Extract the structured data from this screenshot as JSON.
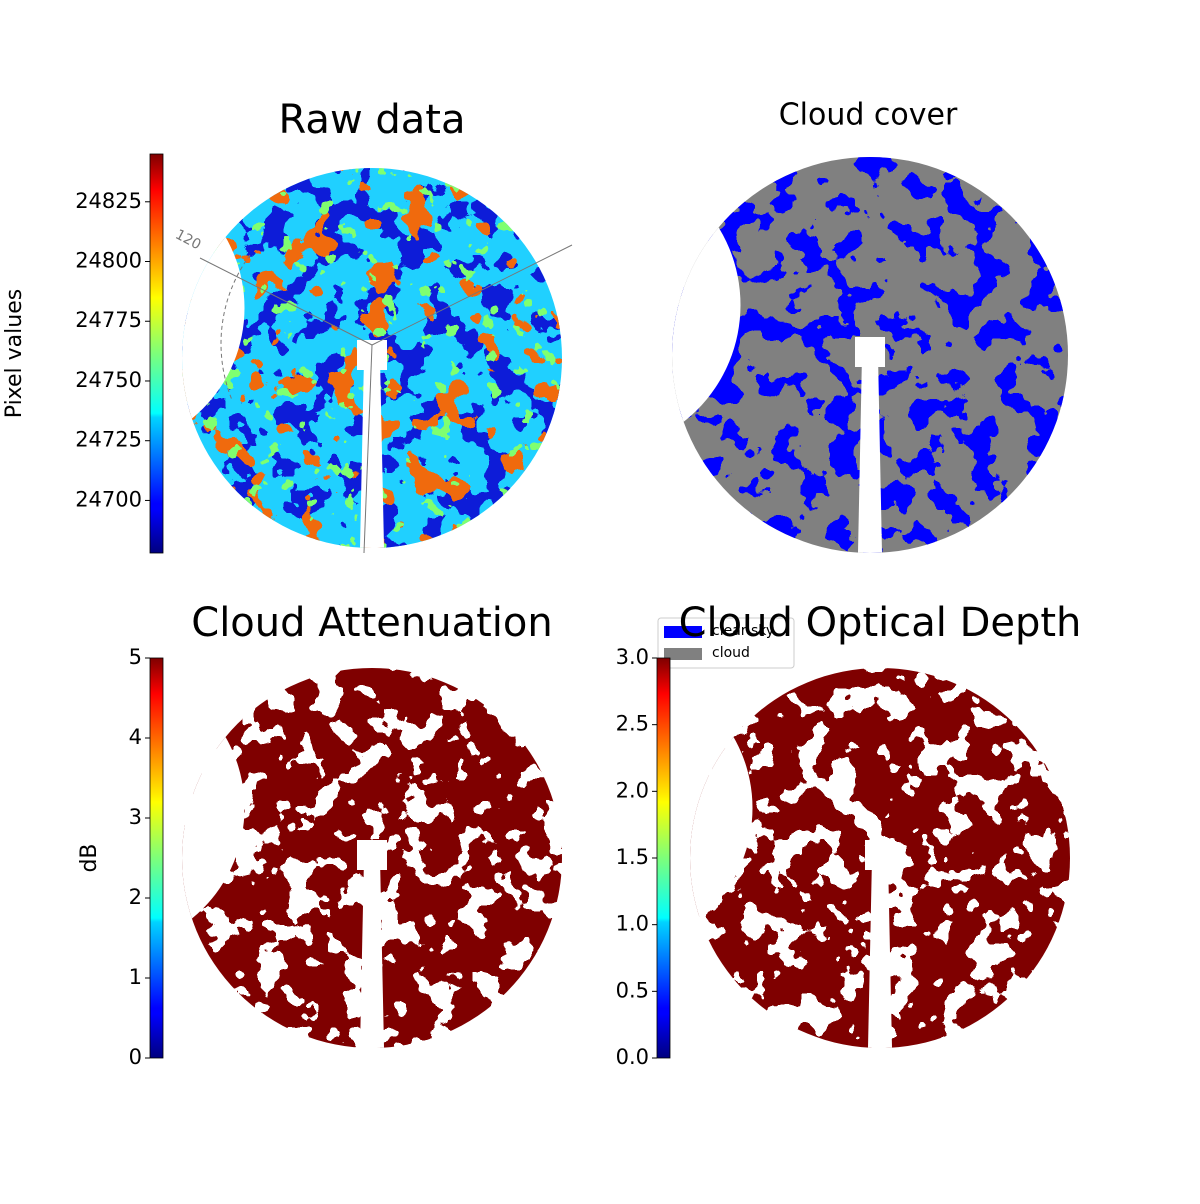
{
  "chart_data": [
    {
      "type": "image",
      "title": "Raw data",
      "cmap": "jet",
      "clim": [
        24678,
        24845
      ],
      "colorbar_label": "Pixel values",
      "colorbar_ticks": [
        24700,
        24725,
        24750,
        24775,
        24800,
        24825
      ],
      "annotations": [
        "120"
      ]
    },
    {
      "type": "image",
      "title": "Cloud cover",
      "series": [
        {
          "name": "clear sky",
          "color": "#0000ff"
        },
        {
          "name": "cloud",
          "color": "#808080"
        }
      ]
    },
    {
      "type": "image",
      "title": "Cloud Attenuation",
      "cmap": "jet",
      "clim": [
        0,
        5
      ],
      "colorbar_label": "dB",
      "colorbar_ticks": [
        0,
        1,
        2,
        3,
        4,
        5
      ]
    },
    {
      "type": "image",
      "title": "Cloud Optical Depth",
      "cmap": "jet",
      "clim": [
        0,
        3
      ],
      "colorbar_ticks": [
        {
          "value": 0,
          "label": "0.0"
        },
        0.5,
        {
          "value": 1,
          "label": "1.0"
        },
        1.5,
        {
          "value": 2,
          "label": "2.0"
        },
        2.5,
        {
          "value": 3,
          "label": "3.0"
        }
      ]
    }
  ]
}
